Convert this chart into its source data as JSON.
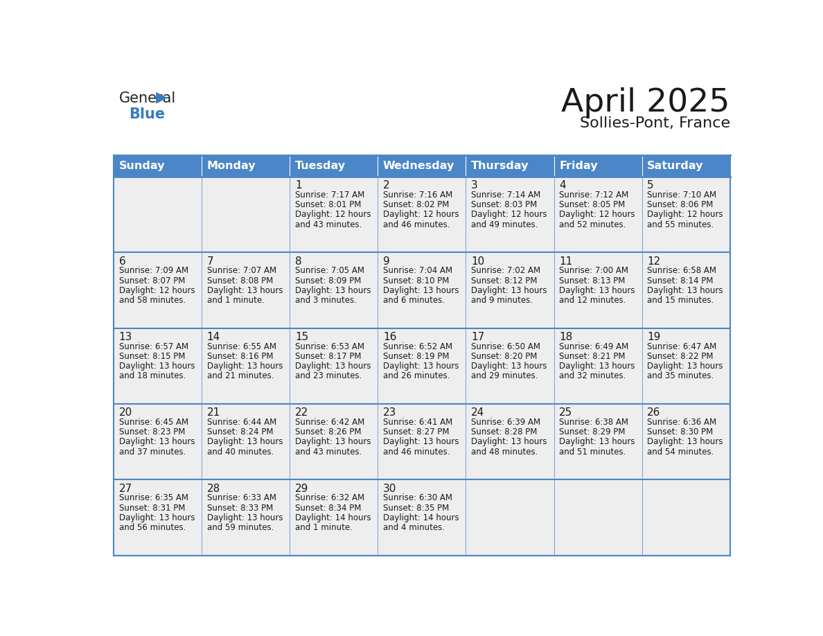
{
  "title": "April 2025",
  "subtitle": "Sollies-Pont, France",
  "header_bg": "#4a86c8",
  "header_text_color": "#ffffff",
  "cell_bg": "#eeeeee",
  "border_color": "#4a86c8",
  "text_color": "#1a1a1a",
  "days_of_week": [
    "Sunday",
    "Monday",
    "Tuesday",
    "Wednesday",
    "Thursday",
    "Friday",
    "Saturday"
  ],
  "weeks": [
    [
      {
        "day": "",
        "info": ""
      },
      {
        "day": "",
        "info": ""
      },
      {
        "day": "1",
        "info": "Sunrise: 7:17 AM\nSunset: 8:01 PM\nDaylight: 12 hours\nand 43 minutes."
      },
      {
        "day": "2",
        "info": "Sunrise: 7:16 AM\nSunset: 8:02 PM\nDaylight: 12 hours\nand 46 minutes."
      },
      {
        "day": "3",
        "info": "Sunrise: 7:14 AM\nSunset: 8:03 PM\nDaylight: 12 hours\nand 49 minutes."
      },
      {
        "day": "4",
        "info": "Sunrise: 7:12 AM\nSunset: 8:05 PM\nDaylight: 12 hours\nand 52 minutes."
      },
      {
        "day": "5",
        "info": "Sunrise: 7:10 AM\nSunset: 8:06 PM\nDaylight: 12 hours\nand 55 minutes."
      }
    ],
    [
      {
        "day": "6",
        "info": "Sunrise: 7:09 AM\nSunset: 8:07 PM\nDaylight: 12 hours\nand 58 minutes."
      },
      {
        "day": "7",
        "info": "Sunrise: 7:07 AM\nSunset: 8:08 PM\nDaylight: 13 hours\nand 1 minute."
      },
      {
        "day": "8",
        "info": "Sunrise: 7:05 AM\nSunset: 8:09 PM\nDaylight: 13 hours\nand 3 minutes."
      },
      {
        "day": "9",
        "info": "Sunrise: 7:04 AM\nSunset: 8:10 PM\nDaylight: 13 hours\nand 6 minutes."
      },
      {
        "day": "10",
        "info": "Sunrise: 7:02 AM\nSunset: 8:12 PM\nDaylight: 13 hours\nand 9 minutes."
      },
      {
        "day": "11",
        "info": "Sunrise: 7:00 AM\nSunset: 8:13 PM\nDaylight: 13 hours\nand 12 minutes."
      },
      {
        "day": "12",
        "info": "Sunrise: 6:58 AM\nSunset: 8:14 PM\nDaylight: 13 hours\nand 15 minutes."
      }
    ],
    [
      {
        "day": "13",
        "info": "Sunrise: 6:57 AM\nSunset: 8:15 PM\nDaylight: 13 hours\nand 18 minutes."
      },
      {
        "day": "14",
        "info": "Sunrise: 6:55 AM\nSunset: 8:16 PM\nDaylight: 13 hours\nand 21 minutes."
      },
      {
        "day": "15",
        "info": "Sunrise: 6:53 AM\nSunset: 8:17 PM\nDaylight: 13 hours\nand 23 minutes."
      },
      {
        "day": "16",
        "info": "Sunrise: 6:52 AM\nSunset: 8:19 PM\nDaylight: 13 hours\nand 26 minutes."
      },
      {
        "day": "17",
        "info": "Sunrise: 6:50 AM\nSunset: 8:20 PM\nDaylight: 13 hours\nand 29 minutes."
      },
      {
        "day": "18",
        "info": "Sunrise: 6:49 AM\nSunset: 8:21 PM\nDaylight: 13 hours\nand 32 minutes."
      },
      {
        "day": "19",
        "info": "Sunrise: 6:47 AM\nSunset: 8:22 PM\nDaylight: 13 hours\nand 35 minutes."
      }
    ],
    [
      {
        "day": "20",
        "info": "Sunrise: 6:45 AM\nSunset: 8:23 PM\nDaylight: 13 hours\nand 37 minutes."
      },
      {
        "day": "21",
        "info": "Sunrise: 6:44 AM\nSunset: 8:24 PM\nDaylight: 13 hours\nand 40 minutes."
      },
      {
        "day": "22",
        "info": "Sunrise: 6:42 AM\nSunset: 8:26 PM\nDaylight: 13 hours\nand 43 minutes."
      },
      {
        "day": "23",
        "info": "Sunrise: 6:41 AM\nSunset: 8:27 PM\nDaylight: 13 hours\nand 46 minutes."
      },
      {
        "day": "24",
        "info": "Sunrise: 6:39 AM\nSunset: 8:28 PM\nDaylight: 13 hours\nand 48 minutes."
      },
      {
        "day": "25",
        "info": "Sunrise: 6:38 AM\nSunset: 8:29 PM\nDaylight: 13 hours\nand 51 minutes."
      },
      {
        "day": "26",
        "info": "Sunrise: 6:36 AM\nSunset: 8:30 PM\nDaylight: 13 hours\nand 54 minutes."
      }
    ],
    [
      {
        "day": "27",
        "info": "Sunrise: 6:35 AM\nSunset: 8:31 PM\nDaylight: 13 hours\nand 56 minutes."
      },
      {
        "day": "28",
        "info": "Sunrise: 6:33 AM\nSunset: 8:33 PM\nDaylight: 13 hours\nand 59 minutes."
      },
      {
        "day": "29",
        "info": "Sunrise: 6:32 AM\nSunset: 8:34 PM\nDaylight: 14 hours\nand 1 minute."
      },
      {
        "day": "30",
        "info": "Sunrise: 6:30 AM\nSunset: 8:35 PM\nDaylight: 14 hours\nand 4 minutes."
      },
      {
        "day": "",
        "info": ""
      },
      {
        "day": "",
        "info": ""
      },
      {
        "day": "",
        "info": ""
      }
    ]
  ]
}
